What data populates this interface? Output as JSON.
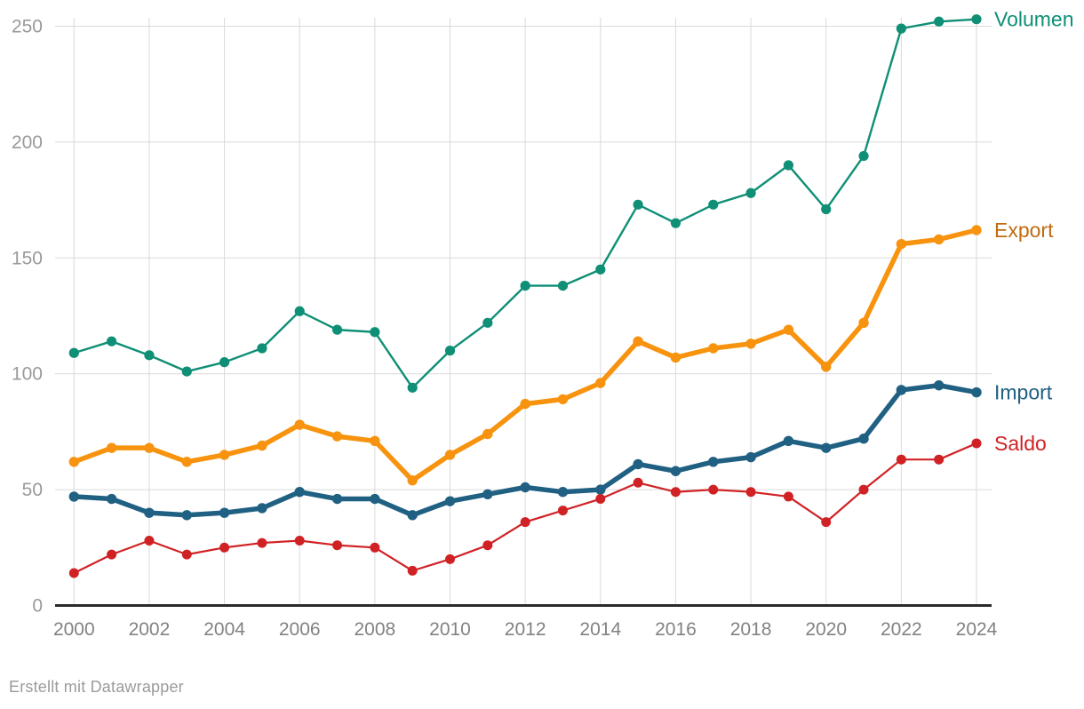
{
  "footer": {
    "credit": "Erstellt mit Datawrapper"
  },
  "colors": {
    "background": "#ffffff",
    "grid": "#dadada",
    "axis": "#2a2a2a",
    "ytick_label": "#9a9a9a",
    "xtick_label": "#828282",
    "footer_text": "#9b9b9b"
  },
  "chart_data": {
    "type": "line",
    "title": "",
    "xlabel": "",
    "ylabel": "",
    "x": [
      2000,
      2001,
      2002,
      2003,
      2004,
      2005,
      2006,
      2007,
      2008,
      2009,
      2010,
      2011,
      2012,
      2013,
      2014,
      2015,
      2016,
      2017,
      2018,
      2019,
      2020,
      2021,
      2022,
      2023,
      2024
    ],
    "xticks": [
      2000,
      2002,
      2004,
      2006,
      2008,
      2010,
      2012,
      2014,
      2016,
      2018,
      2020,
      2022,
      2024
    ],
    "yticks": [
      0,
      50,
      100,
      150,
      200,
      250
    ],
    "ylim": [
      0,
      250
    ],
    "grid": true,
    "legend_position": "right-of-line-ends",
    "series": [
      {
        "name": "Volumen",
        "color": "#0f8f76",
        "label_color": "#0f8f76",
        "line_width": 2.4,
        "marker_radius": 5.6,
        "values": [
          109,
          114,
          108,
          101,
          105,
          111,
          127,
          119,
          118,
          94,
          110,
          122,
          138,
          138,
          145,
          173,
          165,
          173,
          178,
          190,
          171,
          194,
          249,
          252,
          253
        ]
      },
      {
        "name": "Export",
        "color": "#f7930e",
        "label_color": "#c06b10",
        "line_width": 5.5,
        "marker_radius": 5.7,
        "values": [
          62,
          68,
          68,
          62,
          65,
          69,
          78,
          73,
          71,
          54,
          65,
          74,
          87,
          89,
          96,
          114,
          107,
          111,
          113,
          119,
          103,
          122,
          156,
          158,
          162
        ]
      },
      {
        "name": "Import",
        "color": "#206082",
        "label_color": "#206082",
        "line_width": 5.5,
        "marker_radius": 5.7,
        "values": [
          47,
          46,
          40,
          39,
          40,
          42,
          49,
          46,
          46,
          39,
          45,
          48,
          51,
          49,
          50,
          61,
          58,
          62,
          64,
          71,
          68,
          72,
          93,
          95,
          92
        ]
      },
      {
        "name": "Saldo",
        "color": "#d02225",
        "label_color": "#d02225",
        "line_width": 2.2,
        "marker_radius": 5.5,
        "values": [
          14,
          22,
          28,
          22,
          25,
          27,
          28,
          26,
          25,
          15,
          20,
          26,
          36,
          41,
          46,
          53,
          49,
          50,
          49,
          47,
          36,
          50,
          63,
          63,
          70
        ]
      }
    ]
  }
}
